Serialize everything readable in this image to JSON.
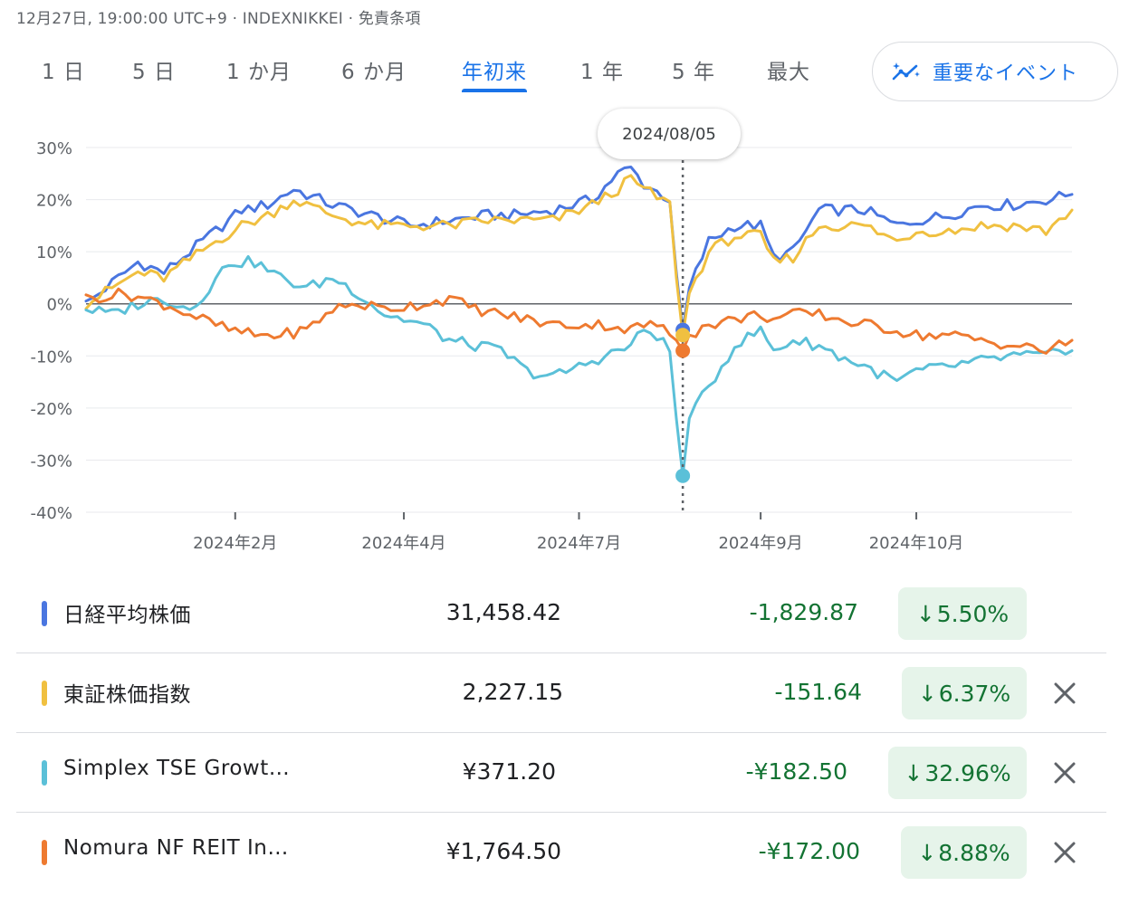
{
  "header": {
    "meta": "12月27日, 19:00:00 UTC+9 · INDEXNIKKEI · 免責条項"
  },
  "tabs": [
    {
      "label": "1 日",
      "active": false
    },
    {
      "label": "5 日",
      "active": false
    },
    {
      "label": "1 か月",
      "active": false
    },
    {
      "label": "6 か月",
      "active": false
    },
    {
      "label": "年初来",
      "active": true
    },
    {
      "label": "1 年",
      "active": false
    },
    {
      "label": "5 年",
      "active": false
    },
    {
      "label": "最大",
      "active": false
    }
  ],
  "events_button": {
    "label": "重要なイベント",
    "icon": "sparkle-trend-icon"
  },
  "tooltip": {
    "date": "2024/08/05"
  },
  "colors": {
    "accent": "#1a73e8",
    "nikkei": "#4a76e0",
    "topix": "#f0c040",
    "growth": "#5bc0d8",
    "reit": "#ee7a30",
    "positive_bg": "#e6f4ea",
    "change_text": "#137333"
  },
  "chart_data": {
    "type": "line",
    "y_tick_labels": [
      "30%",
      "20%",
      "10%",
      "0%",
      "-10%",
      "-20%",
      "-30%",
      "-40%"
    ],
    "y_ticks": [
      30,
      20,
      10,
      0,
      -10,
      -20,
      -30,
      -40
    ],
    "ylim": [
      -40,
      30
    ],
    "x_tick_labels": [
      "2024年2月",
      "2024年4月",
      "2024年7月",
      "2024年9月",
      "2024年10月"
    ],
    "x_tick_index": [
      23,
      49,
      76,
      104,
      128
    ],
    "x_count": 153,
    "highlight_index": 92,
    "highlight_date": "2024/08/05",
    "series": [
      {
        "name": "日経平均株価",
        "color": "#4a76e0",
        "anchors": [
          [
            0,
            0
          ],
          [
            8,
            8
          ],
          [
            12,
            6
          ],
          [
            20,
            14
          ],
          [
            24,
            18
          ],
          [
            28,
            19
          ],
          [
            32,
            22
          ],
          [
            38,
            19
          ],
          [
            44,
            17
          ],
          [
            50,
            15
          ],
          [
            56,
            16
          ],
          [
            62,
            17
          ],
          [
            66,
            17
          ],
          [
            72,
            18
          ],
          [
            78,
            20
          ],
          [
            82,
            25
          ],
          [
            84,
            26
          ],
          [
            86,
            23
          ],
          [
            90,
            20
          ],
          [
            91,
            6
          ],
          [
            92,
            -5
          ],
          [
            93,
            3
          ],
          [
            96,
            12
          ],
          [
            100,
            15
          ],
          [
            104,
            15
          ],
          [
            106,
            9
          ],
          [
            109,
            10
          ],
          [
            113,
            18
          ],
          [
            116,
            18
          ],
          [
            120,
            18
          ],
          [
            125,
            15
          ],
          [
            128,
            16
          ],
          [
            133,
            17
          ],
          [
            138,
            19
          ],
          [
            143,
            19
          ],
          [
            148,
            20
          ],
          [
            152,
            21
          ]
        ]
      },
      {
        "name": "東証株価指数",
        "color": "#f0c040",
        "anchors": [
          [
            0,
            0
          ],
          [
            8,
            6
          ],
          [
            12,
            5
          ],
          [
            20,
            12
          ],
          [
            24,
            15
          ],
          [
            28,
            17
          ],
          [
            32,
            20
          ],
          [
            38,
            17
          ],
          [
            44,
            15
          ],
          [
            50,
            15
          ],
          [
            56,
            15
          ],
          [
            62,
            16
          ],
          [
            66,
            16
          ],
          [
            72,
            16
          ],
          [
            78,
            19
          ],
          [
            82,
            22
          ],
          [
            84,
            24
          ],
          [
            86,
            22
          ],
          [
            90,
            19
          ],
          [
            91,
            5
          ],
          [
            92,
            -6
          ],
          [
            93,
            2
          ],
          [
            96,
            10
          ],
          [
            100,
            13
          ],
          [
            104,
            13
          ],
          [
            106,
            8
          ],
          [
            109,
            9
          ],
          [
            113,
            15
          ],
          [
            116,
            15
          ],
          [
            120,
            15
          ],
          [
            125,
            12
          ],
          [
            128,
            14
          ],
          [
            133,
            14
          ],
          [
            138,
            15
          ],
          [
            143,
            15
          ],
          [
            148,
            14
          ],
          [
            152,
            18
          ]
        ]
      },
      {
        "name": "Simplex TSE Growth",
        "color": "#5bc0d8",
        "anchors": [
          [
            0,
            -1
          ],
          [
            4,
            -2
          ],
          [
            8,
            0
          ],
          [
            12,
            1
          ],
          [
            16,
            -1
          ],
          [
            19,
            3
          ],
          [
            22,
            8
          ],
          [
            26,
            8
          ],
          [
            30,
            5
          ],
          [
            34,
            3
          ],
          [
            38,
            5
          ],
          [
            42,
            2
          ],
          [
            46,
            -2
          ],
          [
            52,
            -4
          ],
          [
            56,
            -7
          ],
          [
            60,
            -8
          ],
          [
            64,
            -9
          ],
          [
            68,
            -13
          ],
          [
            72,
            -14
          ],
          [
            76,
            -12
          ],
          [
            80,
            -10
          ],
          [
            84,
            -8
          ],
          [
            86,
            -5
          ],
          [
            88,
            -6
          ],
          [
            90,
            -9
          ],
          [
            91,
            -22
          ],
          [
            92,
            -33
          ],
          [
            93,
            -22
          ],
          [
            96,
            -16
          ],
          [
            100,
            -8
          ],
          [
            104,
            -5
          ],
          [
            106,
            -9
          ],
          [
            109,
            -7
          ],
          [
            113,
            -8
          ],
          [
            116,
            -10
          ],
          [
            120,
            -12
          ],
          [
            125,
            -15
          ],
          [
            128,
            -13
          ],
          [
            133,
            -12
          ],
          [
            138,
            -11
          ],
          [
            143,
            -10
          ],
          [
            148,
            -10
          ],
          [
            152,
            -9
          ]
        ]
      },
      {
        "name": "Nomura NF REIT Index",
        "color": "#ee7a30",
        "anchors": [
          [
            0,
            1
          ],
          [
            6,
            2
          ],
          [
            12,
            0
          ],
          [
            18,
            -3
          ],
          [
            22,
            -5
          ],
          [
            26,
            -6
          ],
          [
            30,
            -6
          ],
          [
            34,
            -5
          ],
          [
            38,
            -1
          ],
          [
            42,
            0
          ],
          [
            46,
            -1
          ],
          [
            52,
            0
          ],
          [
            56,
            1
          ],
          [
            60,
            -1
          ],
          [
            64,
            -2
          ],
          [
            68,
            -3
          ],
          [
            72,
            -4
          ],
          [
            76,
            -4
          ],
          [
            80,
            -4
          ],
          [
            84,
            -5
          ],
          [
            86,
            -4
          ],
          [
            88,
            -4
          ],
          [
            90,
            -6
          ],
          [
            91,
            -7
          ],
          [
            92,
            -9
          ],
          [
            93,
            -6
          ],
          [
            96,
            -4
          ],
          [
            100,
            -3
          ],
          [
            104,
            -2
          ],
          [
            106,
            -3
          ],
          [
            109,
            -2
          ],
          [
            113,
            -2
          ],
          [
            116,
            -3
          ],
          [
            120,
            -4
          ],
          [
            125,
            -5
          ],
          [
            128,
            -6
          ],
          [
            133,
            -6
          ],
          [
            138,
            -7
          ],
          [
            143,
            -8
          ],
          [
            148,
            -9
          ],
          [
            152,
            -7
          ]
        ]
      }
    ]
  },
  "rows": [
    {
      "name": "日経平均株価",
      "price": "31,458.42",
      "change": "-1,829.87",
      "pct": "5.50%",
      "color": "#4a76e0",
      "removable": false
    },
    {
      "name": "東証株価指数",
      "price": "2,227.15",
      "change": "-151.64",
      "pct": "6.37%",
      "color": "#f0c040",
      "removable": true
    },
    {
      "name": "Simplex TSE Growt…",
      "price": "¥371.20",
      "change": "-¥182.50",
      "pct": "32.96%",
      "color": "#5bc0d8",
      "removable": true
    },
    {
      "name": "Nomura NF REIT In…",
      "price": "¥1,764.50",
      "change": "-¥172.00",
      "pct": "8.88%",
      "color": "#ee7a30",
      "removable": true
    }
  ]
}
